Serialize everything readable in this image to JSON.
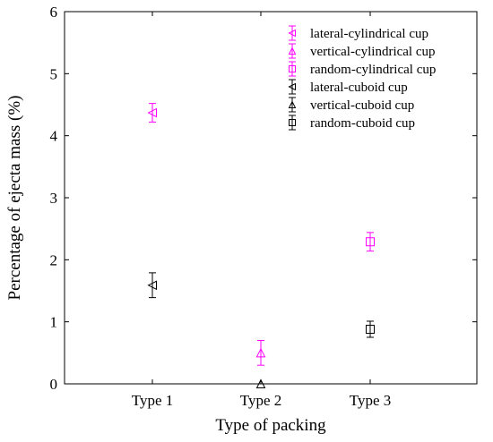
{
  "chart_data": {
    "type": "scatter",
    "xlabel": "Type of packing",
    "ylabel": "Percentage of ejecta mass (%)",
    "categories": [
      "Type 1",
      "Type 2",
      "Type 3"
    ],
    "ylim": [
      0,
      6
    ],
    "yticks": [
      "0",
      "1",
      "2",
      "3",
      "4",
      "5",
      "6"
    ],
    "grid": false,
    "legend_position": "top-right",
    "series": [
      {
        "name": "lateral-cylindrical cup",
        "color": "#ff00ff",
        "marker": "triangle-left",
        "points": [
          {
            "category": "Type 1",
            "y": 4.37,
            "err": 0.15
          }
        ]
      },
      {
        "name": "vertical-cylindrical cup",
        "color": "#ff00ff",
        "marker": "triangle-up",
        "points": [
          {
            "category": "Type 2",
            "y": 0.5,
            "err": 0.2
          }
        ]
      },
      {
        "name": "random-cylindrical cup",
        "color": "#ff00ff",
        "marker": "square",
        "points": [
          {
            "category": "Type 3",
            "y": 2.29,
            "err": 0.15
          }
        ]
      },
      {
        "name": "lateral-cuboid cup",
        "color": "#000000",
        "marker": "triangle-left",
        "points": [
          {
            "category": "Type 1",
            "y": 1.59,
            "err": 0.2
          }
        ]
      },
      {
        "name": "vertical-cuboid cup",
        "color": "#000000",
        "marker": "triangle-up",
        "points": [
          {
            "category": "Type 2",
            "y": 0.0,
            "err": 0.0
          }
        ]
      },
      {
        "name": "random-cuboid cup",
        "color": "#000000",
        "marker": "square",
        "points": [
          {
            "category": "Type 3",
            "y": 0.88,
            "err": 0.13
          }
        ]
      }
    ]
  }
}
